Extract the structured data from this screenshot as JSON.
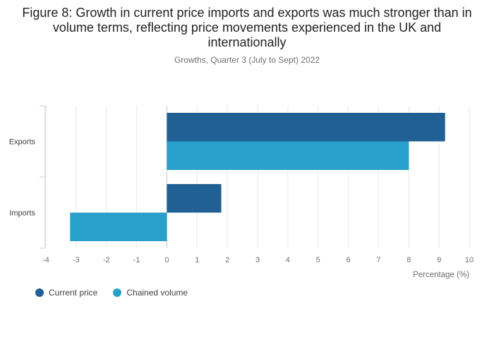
{
  "chart_data": {
    "type": "bar",
    "orientation": "horizontal",
    "title": "Figure 8: Growth in current price imports and exports was much stronger than in volume terms, reflecting price movements experienced in the UK and internationally",
    "subtitle": "Growths, Quarter 3 (July to Sept) 2022",
    "xlabel": "Percentage (%)",
    "ylabel": "",
    "categories": [
      "Exports",
      "Imports"
    ],
    "series": [
      {
        "name": "Current price",
        "color": "#206095",
        "values": [
          9.2,
          1.8
        ]
      },
      {
        "name": "Chained volume",
        "color": "#27a0cc",
        "values": [
          8.0,
          -3.2
        ]
      }
    ],
    "xlim": [
      -4,
      10
    ],
    "xticks": [
      "-4",
      "-3",
      "-2",
      "-1",
      "0",
      "1",
      "2",
      "3",
      "4",
      "5",
      "6",
      "7",
      "8",
      "9",
      "10"
    ],
    "grid": true,
    "legend_position": "bottom-left"
  }
}
